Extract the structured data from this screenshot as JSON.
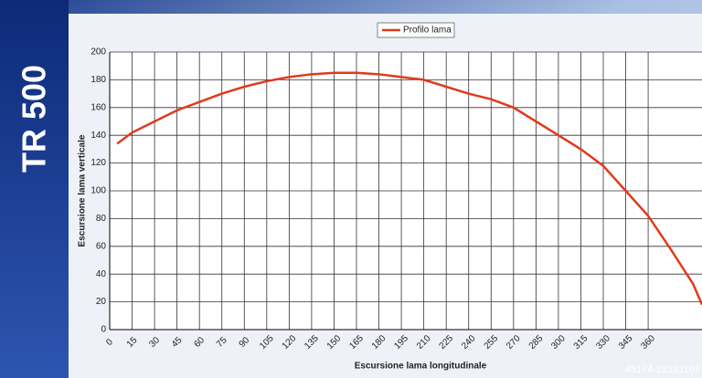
{
  "header": {
    "model": "TR 500"
  },
  "watermark": "45174-22331107",
  "chart_data": {
    "type": "line",
    "x_label": "Escursione lama longitudinale",
    "y_label": "Escursione lama verticale",
    "x": [
      5,
      15,
      30,
      45,
      60,
      75,
      90,
      105,
      120,
      135,
      150,
      165,
      180,
      195,
      210,
      225,
      240,
      255,
      270,
      285,
      300,
      315,
      330,
      345,
      360,
      375,
      390,
      396
    ],
    "series": [
      {
        "name": "Profilo lama",
        "color": "#e03a1e",
        "values": [
          134,
          142,
          150,
          158,
          164,
          170,
          175,
          179,
          182,
          184,
          185,
          185,
          184,
          182,
          180,
          175,
          170,
          166,
          160,
          150,
          140,
          130,
          118,
          100,
          82,
          58,
          33,
          18
        ]
      }
    ],
    "xlim": [
      0,
      396
    ],
    "xticks": [
      0,
      15,
      30,
      45,
      60,
      75,
      90,
      105,
      120,
      135,
      150,
      165,
      180,
      195,
      210,
      225,
      240,
      255,
      270,
      285,
      300,
      315,
      330,
      345,
      360
    ],
    "ylim": [
      0,
      200
    ],
    "yticks": [
      0,
      20,
      40,
      60,
      80,
      100,
      120,
      140,
      160,
      180,
      200
    ],
    "grid": true,
    "legend": "top"
  }
}
